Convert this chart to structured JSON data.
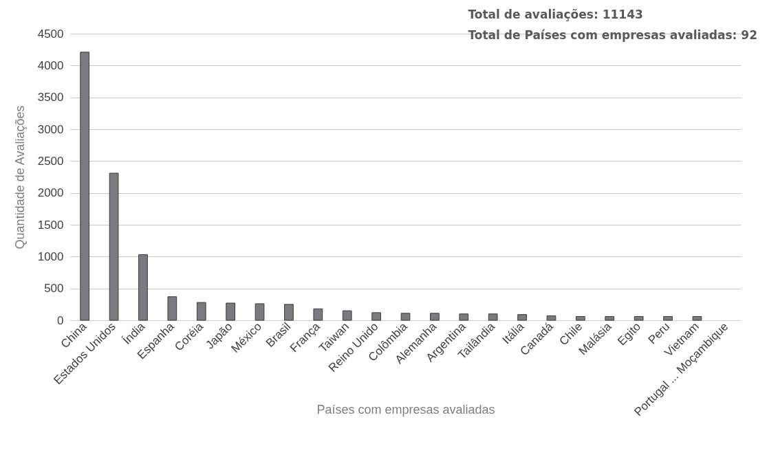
{
  "chart_data": {
    "type": "bar",
    "xlabel": "Países com empresas avaliadas",
    "ylabel": "Quantidade de Avaliações",
    "annotations": [
      "Total de avaliações: 11143",
      "Total de Países com empresas avaliadas: 92"
    ],
    "categories": [
      "China",
      "Estados Unidos",
      "Índia",
      "Espanha",
      "Coréia",
      "Japão",
      "México",
      "Brasil",
      "França",
      "Taiwan",
      "Reino Unido",
      "Colômbia",
      "Alemanha",
      "Argentina",
      "Tailândia",
      "Itália",
      "Canadá",
      "Chile",
      "Malásia",
      "Egito",
      "Peru",
      "Vietnam",
      "Portugal ... Moçambique"
    ],
    "values": [
      4210,
      2310,
      1030,
      370,
      280,
      270,
      260,
      250,
      180,
      150,
      120,
      110,
      110,
      100,
      100,
      90,
      70,
      60,
      60,
      60,
      60,
      60,
      null
    ],
    "color": "#7a7b80",
    "ylim": [
      0,
      4500
    ],
    "yticks": [
      0,
      500,
      1000,
      1500,
      2000,
      2500,
      3000,
      3500,
      4000,
      4500
    ],
    "grid": "y"
  }
}
